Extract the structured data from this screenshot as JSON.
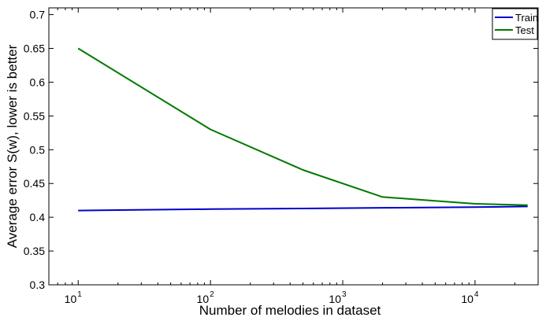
{
  "chart_data": {
    "type": "line",
    "xlabel": "Number of melodies in dataset",
    "ylabel": "Average error S(w), lower is better",
    "x_scale": "log",
    "xlim": [
      6,
      30000
    ],
    "ylim": [
      0.3,
      0.71
    ],
    "x_ticks": [
      {
        "value": 10,
        "base": "10",
        "exp": "1"
      },
      {
        "value": 100,
        "base": "10",
        "exp": "2"
      },
      {
        "value": 1000,
        "base": "10",
        "exp": "3"
      },
      {
        "value": 10000,
        "base": "10",
        "exp": "4"
      }
    ],
    "y_ticks": [
      {
        "value": 0.3,
        "label": "0.3"
      },
      {
        "value": 0.35,
        "label": "0.35"
      },
      {
        "value": 0.4,
        "label": "0.4"
      },
      {
        "value": 0.45,
        "label": "0.45"
      },
      {
        "value": 0.5,
        "label": "0.5"
      },
      {
        "value": 0.55,
        "label": "0.55"
      },
      {
        "value": 0.6,
        "label": "0.6"
      },
      {
        "value": 0.65,
        "label": "0.65"
      },
      {
        "value": 0.7,
        "label": "0.7"
      }
    ],
    "grid": false,
    "legend_position": "top-right",
    "series": [
      {
        "name": "Train",
        "color": "#0000cc",
        "x": [
          10,
          100,
          500,
          2000,
          10000,
          25000
        ],
        "y": [
          0.41,
          0.412,
          0.413,
          0.414,
          0.415,
          0.416
        ]
      },
      {
        "name": "Test",
        "color": "#007a00",
        "x": [
          10,
          100,
          500,
          2000,
          10000,
          25000
        ],
        "y": [
          0.65,
          0.53,
          0.47,
          0.43,
          0.42,
          0.418
        ]
      }
    ]
  }
}
